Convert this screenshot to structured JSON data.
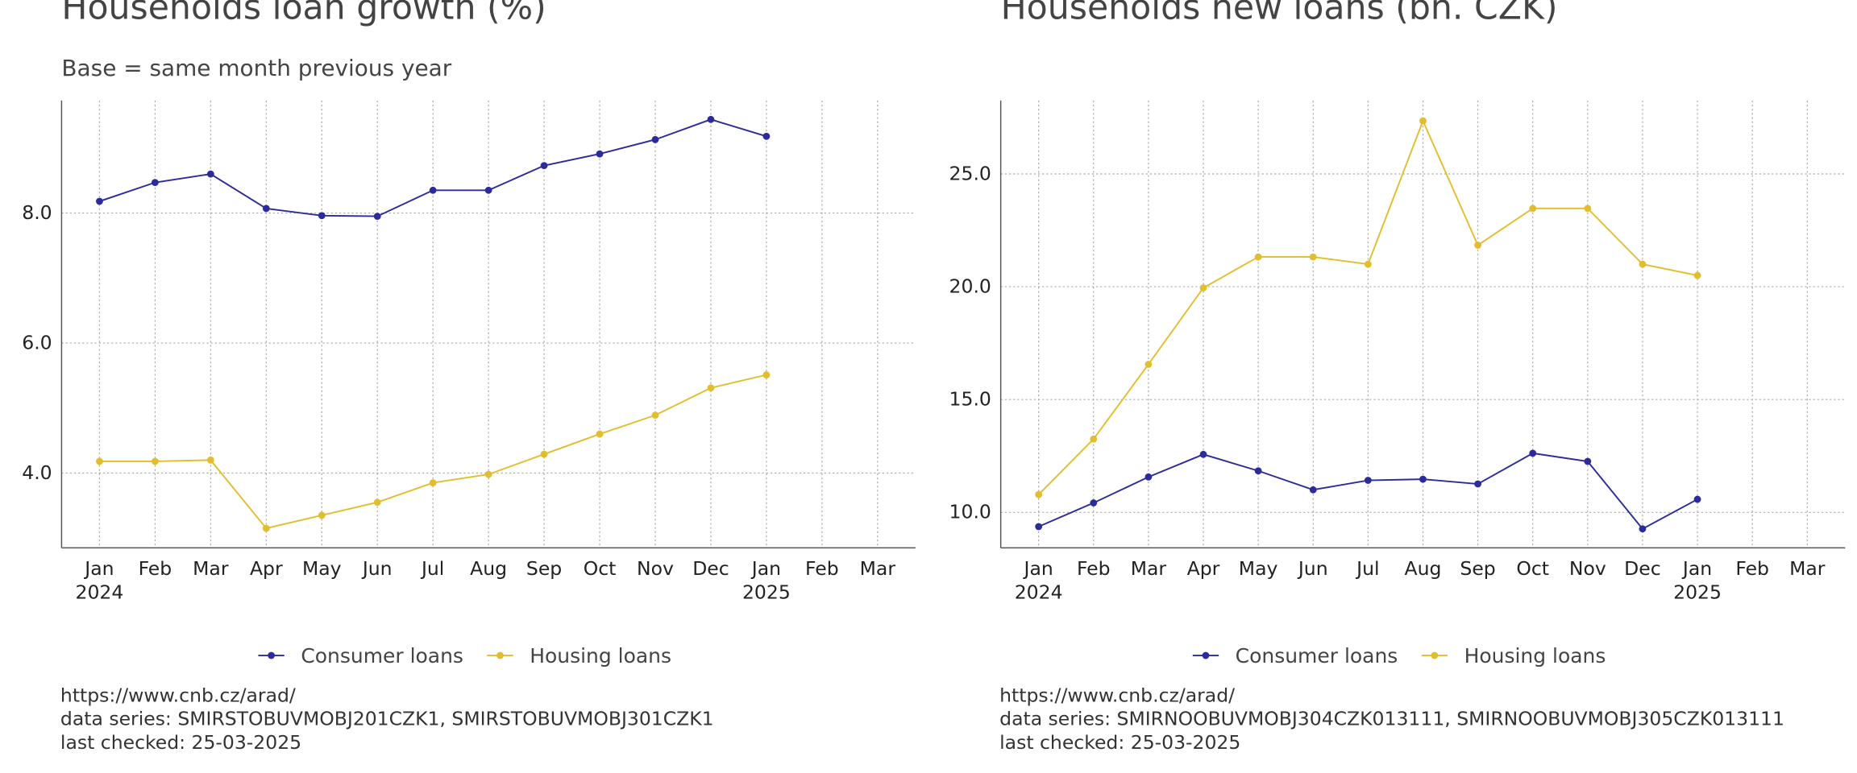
{
  "chart_data": [
    {
      "type": "line",
      "title": "Households loan growth (%)",
      "subtitle": "Base = same month previous year",
      "categories": [
        "Jan 2024",
        "Feb",
        "Mar",
        "Apr",
        "May",
        "Jun",
        "Jul",
        "Aug",
        "Sep",
        "Oct",
        "Nov",
        "Dec",
        "Jan 2025",
        "Feb",
        "Mar"
      ],
      "series": [
        {
          "name": "Consumer loans",
          "color": "#2b2b9b",
          "values": [
            8.18,
            8.47,
            8.6,
            8.07,
            7.96,
            7.95,
            8.35,
            8.35,
            8.73,
            8.91,
            9.13,
            9.44,
            9.18,
            null,
            null
          ]
        },
        {
          "name": "Housing loans",
          "color": "#e2be2e",
          "values": [
            4.18,
            4.18,
            4.2,
            3.15,
            3.35,
            3.55,
            3.85,
            3.98,
            4.29,
            4.6,
            4.89,
            5.31,
            5.51,
            null,
            null
          ]
        }
      ],
      "ylim": [
        2.85,
        9.73
      ],
      "yticks": [
        {
          "value": 4,
          "label": "4.0"
        },
        {
          "value": 6,
          "label": "6.0"
        },
        {
          "value": 8,
          "label": "8.0"
        }
      ],
      "grid": true,
      "legend": "bottom",
      "notes": [
        "https://www.cnb.cz/arad/",
        "data series: SMIRSTOBUVMOBJ201CZK1, SMIRSTOBUVMOBJ301CZK1",
        "last checked: 25-03-2025"
      ]
    },
    {
      "type": "line",
      "title": "Households new loans (bn. CZK)",
      "categories": [
        "Jan 2024",
        "Feb",
        "Mar",
        "Apr",
        "May",
        "Jun",
        "Jul",
        "Aug",
        "Sep",
        "Oct",
        "Nov",
        "Dec",
        "Jan 2025",
        "Feb",
        "Mar"
      ],
      "series": [
        {
          "name": "Consumer loans",
          "color": "#2b2b9b",
          "values": [
            9.37,
            10.42,
            11.57,
            12.57,
            11.84,
            11.0,
            11.42,
            11.47,
            11.26,
            12.62,
            12.26,
            9.27,
            10.58,
            null,
            null
          ]
        },
        {
          "name": "Housing loans",
          "color": "#e2be2e",
          "values": [
            10.79,
            13.25,
            16.56,
            19.95,
            21.32,
            21.32,
            21.0,
            27.35,
            21.84,
            23.47,
            23.47,
            21.0,
            20.5,
            null,
            null
          ]
        }
      ],
      "ylim": [
        8.43,
        28.25
      ],
      "yticks": [
        {
          "value": 10,
          "label": "10.0"
        },
        {
          "value": 15,
          "label": "15.0"
        },
        {
          "value": 20,
          "label": "20.0"
        },
        {
          "value": 25,
          "label": "25.0"
        }
      ],
      "grid": true,
      "legend": "bottom",
      "notes": [
        "https://www.cnb.cz/arad/",
        "data series: SMIRNOOBUVMOBJ304CZK013111, SMIRNOOBUVMOBJ305CZK013111",
        "last checked: 25-03-2025"
      ]
    }
  ]
}
